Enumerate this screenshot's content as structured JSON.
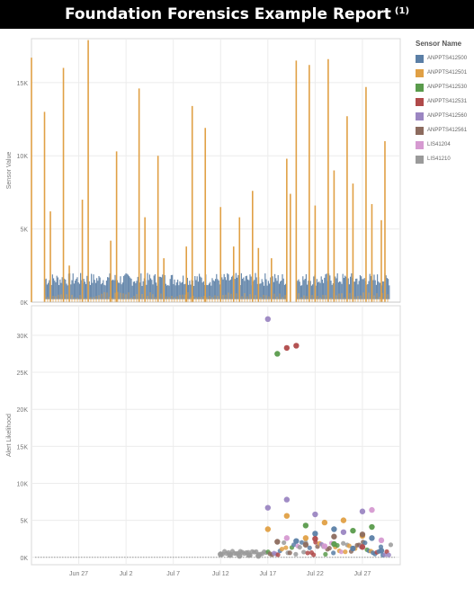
{
  "title": {
    "text": "Foundation Forensics Example Report",
    "sup": "(1)"
  },
  "legend": {
    "title": "Sensor Name",
    "items": [
      {
        "label": "ANPPTS412500",
        "color": "#5b7fa6"
      },
      {
        "label": "ANPPTS412501",
        "color": "#e0a045"
      },
      {
        "label": "ANPPTS412530",
        "color": "#5a9b4c"
      },
      {
        "label": "ANPPTS412531",
        "color": "#b04a4a"
      },
      {
        "label": "ANPPTS412560",
        "color": "#9b86c2"
      },
      {
        "label": "ANPPTS412561",
        "color": "#8c6b5e"
      },
      {
        "label": "LIS41204",
        "color": "#d69ad1"
      },
      {
        "label": "LIS41210",
        "color": "#9a9a9a"
      }
    ]
  },
  "chart_data": [
    {
      "type": "line",
      "ylabel": "Sensor Value",
      "ylim": [
        0,
        18000
      ],
      "yticks": [
        "0K",
        "5K",
        "10K",
        "15K"
      ],
      "ytick_values": [
        0,
        5000,
        10000,
        15000
      ],
      "xlim": [
        "2023-06-22",
        "2023-07-31"
      ],
      "baseline_band": {
        "series": "ANPPTS412500",
        "low": 0,
        "high": 2000,
        "gap": [
          "2023-07-19",
          "2023-07-20"
        ]
      },
      "spikes": {
        "series": "ANPPTS412501",
        "points": [
          [
            "2023-06-22",
            16700
          ],
          [
            "2023-06-23",
            13000
          ],
          [
            "2023-06-24",
            6200
          ],
          [
            "2023-06-25",
            16000
          ],
          [
            "2023-06-26",
            2500
          ],
          [
            "2023-06-27",
            7000
          ],
          [
            "2023-06-28",
            17900
          ],
          [
            "2023-06-30",
            4200
          ],
          [
            "2023-07-01",
            10300
          ],
          [
            "2023-07-03",
            14600
          ],
          [
            "2023-07-04",
            5800
          ],
          [
            "2023-07-05",
            10000
          ],
          [
            "2023-07-06",
            3000
          ],
          [
            "2023-07-08",
            3800
          ],
          [
            "2023-07-09",
            13400
          ],
          [
            "2023-07-10",
            11900
          ],
          [
            "2023-07-12",
            6500
          ],
          [
            "2023-07-13",
            3800
          ],
          [
            "2023-07-14",
            5800
          ],
          [
            "2023-07-15",
            7600
          ],
          [
            "2023-07-16",
            3700
          ],
          [
            "2023-07-17",
            3000
          ],
          [
            "2023-07-19",
            9800
          ],
          [
            "2023-07-19",
            7400
          ],
          [
            "2023-07-20",
            16500
          ],
          [
            "2023-07-21",
            16200
          ],
          [
            "2023-07-22",
            6600
          ],
          [
            "2023-07-23",
            16600
          ],
          [
            "2023-07-24",
            9000
          ],
          [
            "2023-07-25",
            12700
          ],
          [
            "2023-07-26",
            8100
          ],
          [
            "2023-07-27",
            14700
          ],
          [
            "2023-07-28",
            6700
          ],
          [
            "2023-07-29",
            11000
          ],
          [
            "2023-07-29",
            5600
          ]
        ]
      }
    },
    {
      "type": "scatter",
      "ylabel": "Alert Likelihood",
      "ylim": [
        -1000,
        34000
      ],
      "yticks": [
        "0K",
        "5K",
        "10K",
        "15K",
        "20K",
        "25K",
        "30K"
      ],
      "ytick_values": [
        0,
        5000,
        10000,
        15000,
        20000,
        25000,
        30000
      ],
      "xlim": [
        "2023-06-22",
        "2023-07-31"
      ],
      "xticks": [
        "Jun 27",
        "Jul 2",
        "Jul 7",
        "Jul 12",
        "Jul 17",
        "Jul 22",
        "Jul 27"
      ],
      "xtick_dates": [
        "2023-06-27",
        "2023-07-02",
        "2023-07-07",
        "2023-07-12",
        "2023-07-17",
        "2023-07-22",
        "2023-07-27"
      ],
      "series": [
        {
          "name": "ANPPTS412500",
          "points": [
            [
              "2023-07-20",
              2200
            ],
            [
              "2023-07-22",
              3200
            ],
            [
              "2023-07-24",
              3800
            ],
            [
              "2023-07-26",
              1200
            ],
            [
              "2023-07-28",
              2600
            ],
            [
              "2023-07-29",
              900
            ]
          ]
        },
        {
          "name": "ANPPTS412501",
          "points": [
            [
              "2023-07-17",
              3800
            ],
            [
              "2023-07-19",
              5600
            ],
            [
              "2023-07-21",
              2600
            ],
            [
              "2023-07-23",
              4700
            ],
            [
              "2023-07-25",
              5000
            ],
            [
              "2023-07-27",
              2900
            ]
          ]
        },
        {
          "name": "ANPPTS412530",
          "points": [
            [
              "2023-07-18",
              27500
            ],
            [
              "2023-07-21",
              4300
            ],
            [
              "2023-07-24",
              1800
            ],
            [
              "2023-07-26",
              3600
            ],
            [
              "2023-07-28",
              4100
            ]
          ]
        },
        {
          "name": "ANPPTS412531",
          "points": [
            [
              "2023-07-19",
              28300
            ],
            [
              "2023-07-20",
              28600
            ],
            [
              "2023-07-22",
              2500
            ],
            [
              "2023-07-27",
              1400
            ]
          ]
        },
        {
          "name": "ANPPTS412560",
          "points": [
            [
              "2023-07-17",
              32200
            ],
            [
              "2023-07-17",
              6700
            ],
            [
              "2023-07-19",
              7800
            ],
            [
              "2023-07-22",
              5800
            ],
            [
              "2023-07-25",
              3400
            ],
            [
              "2023-07-27",
              6200
            ]
          ]
        },
        {
          "name": "ANPPTS412561",
          "points": [
            [
              "2023-07-18",
              2100
            ],
            [
              "2023-07-21",
              1700
            ],
            [
              "2023-07-24",
              2800
            ],
            [
              "2023-07-27",
              3100
            ]
          ]
        },
        {
          "name": "LIS41204",
          "points": [
            [
              "2023-07-19",
              2600
            ],
            [
              "2023-07-23",
              1500
            ],
            [
              "2023-07-28",
              6400
            ],
            [
              "2023-07-29",
              2300
            ]
          ]
        },
        {
          "name": "LIS41210",
          "points": [
            [
              "2023-07-12",
              400
            ],
            [
              "2023-07-13",
              300
            ],
            [
              "2023-07-14",
              200
            ],
            [
              "2023-07-15",
              300
            ],
            [
              "2023-07-16",
              200
            ]
          ]
        }
      ]
    }
  ]
}
